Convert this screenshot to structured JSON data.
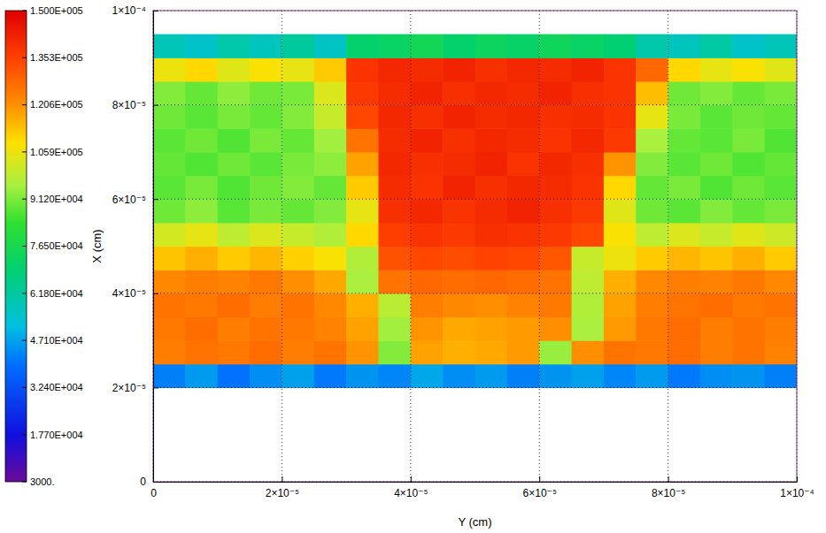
{
  "chart_data": {
    "type": "heatmap",
    "x_label": "Y (cm)",
    "y_label": "X (cm)",
    "xlim": [
      0,
      0.0001
    ],
    "ylim": [
      0,
      0.0001
    ],
    "xticks": [
      0,
      {
        "value": 2e-05,
        "label": "2×10⁻⁵"
      },
      {
        "value": 4e-05,
        "label": "4×10⁻⁵"
      },
      {
        "value": 6e-05,
        "label": "6×10⁻⁵"
      },
      {
        "value": 8e-05,
        "label": "8×10⁻⁵"
      },
      {
        "value": 0.0001,
        "label": "1×10⁻⁴"
      }
    ],
    "yticks": [
      0,
      {
        "value": 2e-05,
        "label": "2×10⁻⁵"
      },
      {
        "value": 4e-05,
        "label": "4×10⁻⁵"
      },
      {
        "value": 6e-05,
        "label": "6×10⁻⁵"
      },
      {
        "value": 8e-05,
        "label": "8×10⁻⁵"
      },
      {
        "value": 0.0001,
        "label": "1×10⁻⁴"
      }
    ],
    "grid": true,
    "x_edges": [
      0,
      5e-06,
      1e-05,
      1.5e-05,
      2e-05,
      2.5e-05,
      3e-05,
      3.5e-05,
      4e-05,
      4.5e-05,
      5e-05,
      5.5e-05,
      6e-05,
      6.5e-05,
      7e-05,
      7.5e-05,
      8e-05,
      8.5e-05,
      9e-05,
      9.5e-05,
      0.0001
    ],
    "y_edges": [
      0,
      5e-06,
      1e-05,
      1.5e-05,
      2e-05,
      2.5e-05,
      3e-05,
      3.5e-05,
      4e-05,
      4.5e-05,
      5e-05,
      5.5e-05,
      6e-05,
      6.5e-05,
      7e-05,
      7.5e-05,
      8e-05,
      8.5e-05,
      9e-05,
      9.5e-05,
      0.0001
    ],
    "z": [
      [
        null,
        null,
        null,
        null,
        null,
        null,
        null,
        null,
        null,
        null,
        null,
        null,
        null,
        null,
        null,
        null,
        null,
        null,
        null,
        null
      ],
      [
        null,
        null,
        null,
        null,
        null,
        null,
        null,
        null,
        null,
        null,
        null,
        null,
        null,
        null,
        null,
        null,
        null,
        null,
        null,
        null
      ],
      [
        null,
        null,
        null,
        null,
        null,
        null,
        null,
        null,
        null,
        null,
        null,
        null,
        null,
        null,
        null,
        null,
        null,
        null,
        null,
        null
      ],
      [
        null,
        null,
        null,
        null,
        null,
        null,
        null,
        null,
        null,
        null,
        null,
        null,
        null,
        null,
        null,
        null,
        null,
        null,
        null,
        null
      ],
      [
        42000,
        46000,
        40000,
        44000,
        47000,
        41000,
        45000,
        43000,
        48000,
        44000,
        46000,
        42000,
        45000,
        47000,
        43000,
        46000,
        41000,
        44000,
        45000,
        42000
      ],
      [
        124000,
        126000,
        125000,
        127000,
        124000,
        126000,
        120000,
        92000,
        118000,
        116000,
        117000,
        119000,
        94000,
        121000,
        126000,
        125000,
        127000,
        124000,
        126000,
        123000
      ],
      [
        125000,
        127000,
        124000,
        126000,
        125000,
        123000,
        118000,
        95000,
        120000,
        117000,
        118000,
        119000,
        121000,
        96000,
        119000,
        125000,
        127000,
        124000,
        126000,
        124000
      ],
      [
        126000,
        125000,
        127000,
        124000,
        126000,
        122000,
        116000,
        98000,
        124000,
        122000,
        121000,
        123000,
        125000,
        97000,
        118000,
        124000,
        126000,
        127000,
        125000,
        126000
      ],
      [
        122000,
        124000,
        123000,
        125000,
        121000,
        117000,
        96000,
        126000,
        128000,
        127000,
        128000,
        127000,
        126000,
        99000,
        116000,
        122000,
        124000,
        123000,
        125000,
        122000
      ],
      [
        113000,
        116000,
        112000,
        115000,
        111000,
        108000,
        97000,
        132000,
        134000,
        133000,
        135000,
        134000,
        131000,
        100000,
        106000,
        112000,
        115000,
        113000,
        116000,
        112000
      ],
      [
        102000,
        105000,
        99000,
        103000,
        100000,
        97000,
        110000,
        136000,
        138000,
        137000,
        139000,
        138000,
        137000,
        134000,
        108000,
        99000,
        103000,
        100000,
        104000,
        101000
      ],
      [
        90000,
        93000,
        88000,
        91000,
        89000,
        92000,
        105000,
        139000,
        141000,
        138000,
        140000,
        142000,
        139000,
        137000,
        104000,
        90000,
        88000,
        92000,
        89000,
        91000
      ],
      [
        88000,
        91000,
        87000,
        90000,
        92000,
        89000,
        112000,
        140000,
        138000,
        142000,
        139000,
        141000,
        140000,
        138000,
        110000,
        89000,
        91000,
        87000,
        90000,
        88000
      ],
      [
        89000,
        87000,
        90000,
        88000,
        91000,
        93000,
        118000,
        141000,
        139000,
        140000,
        142000,
        138000,
        141000,
        139000,
        120000,
        92000,
        88000,
        90000,
        87000,
        89000
      ],
      [
        88000,
        90000,
        87000,
        91000,
        89000,
        95000,
        126000,
        140000,
        142000,
        139000,
        141000,
        140000,
        138000,
        141000,
        137000,
        96000,
        89000,
        88000,
        91000,
        87000
      ],
      [
        90000,
        88000,
        91000,
        89000,
        92000,
        100000,
        134000,
        141000,
        139000,
        142000,
        140000,
        141000,
        139000,
        140000,
        138000,
        105000,
        91000,
        88000,
        90000,
        89000
      ],
      [
        92000,
        89000,
        93000,
        90000,
        91000,
        103000,
        137000,
        140000,
        142000,
        139000,
        141000,
        140000,
        142000,
        139000,
        138000,
        114000,
        90000,
        92000,
        89000,
        91000
      ],
      [
        106000,
        110000,
        104000,
        108000,
        105000,
        112000,
        138000,
        141000,
        140000,
        142000,
        139000,
        141000,
        140000,
        142000,
        138000,
        128000,
        110000,
        105000,
        108000,
        104000
      ],
      [
        58000,
        55000,
        60000,
        57000,
        62000,
        56000,
        70000,
        72000,
        75000,
        70000,
        73000,
        71000,
        74000,
        72000,
        69000,
        60000,
        57000,
        61000,
        55000,
        58000
      ],
      [
        null,
        null,
        null,
        null,
        null,
        null,
        null,
        null,
        null,
        null,
        null,
        null,
        null,
        null,
        null,
        null,
        null,
        null,
        null,
        null
      ]
    ],
    "colorbar": {
      "range": [
        3000,
        150000
      ],
      "ticks": [
        {
          "value": 3000,
          "label": "3000."
        },
        {
          "value": 17700,
          "label": "1.770E+004"
        },
        {
          "value": 32400,
          "label": "3.240E+004"
        },
        {
          "value": 47100,
          "label": "4.710E+004"
        },
        {
          "value": 61800,
          "label": "6.180E+004"
        },
        {
          "value": 76500,
          "label": "7.650E+004"
        },
        {
          "value": 91200,
          "label": "9.120E+004"
        },
        {
          "value": 105900,
          "label": "1.059E+005"
        },
        {
          "value": 120600,
          "label": "1.206E+005"
        },
        {
          "value": 135300,
          "label": "1.353E+005"
        },
        {
          "value": 150000,
          "label": "1.500E+005"
        }
      ]
    }
  }
}
